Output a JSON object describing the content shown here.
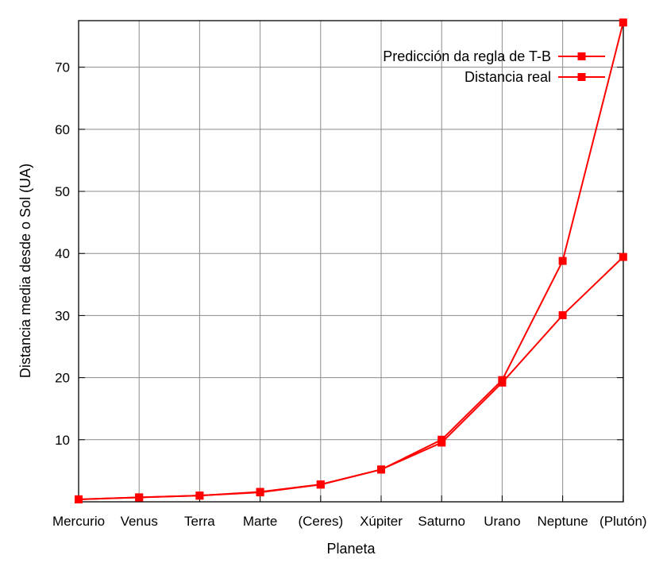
{
  "chart_data": {
    "type": "line",
    "title": "",
    "xlabel": "Planeta",
    "ylabel": "Distancia media desde o Sol (UA)",
    "categories": [
      "Mercurio",
      "Venus",
      "Terra",
      "Marte",
      "(Ceres)",
      "Xúpiter",
      "Saturno",
      "Urano",
      "Neptune",
      "(Plutón)"
    ],
    "yticks": [
      "10",
      "20",
      "30",
      "40",
      "50",
      "60",
      "70"
    ],
    "ylim": [
      0,
      77.5
    ],
    "grid": true,
    "legend_position": "top-right",
    "series": [
      {
        "name": "Predicción da regla de T-B",
        "color": "#ff0000",
        "values": [
          0.4,
          0.7,
          1.0,
          1.6,
          2.8,
          5.2,
          10.0,
          19.6,
          38.8,
          77.2
        ]
      },
      {
        "name": "Distancia real",
        "color": "#ff0000",
        "values": [
          0.39,
          0.72,
          1.0,
          1.52,
          2.77,
          5.2,
          9.54,
          19.2,
          30.06,
          39.44
        ]
      }
    ]
  }
}
